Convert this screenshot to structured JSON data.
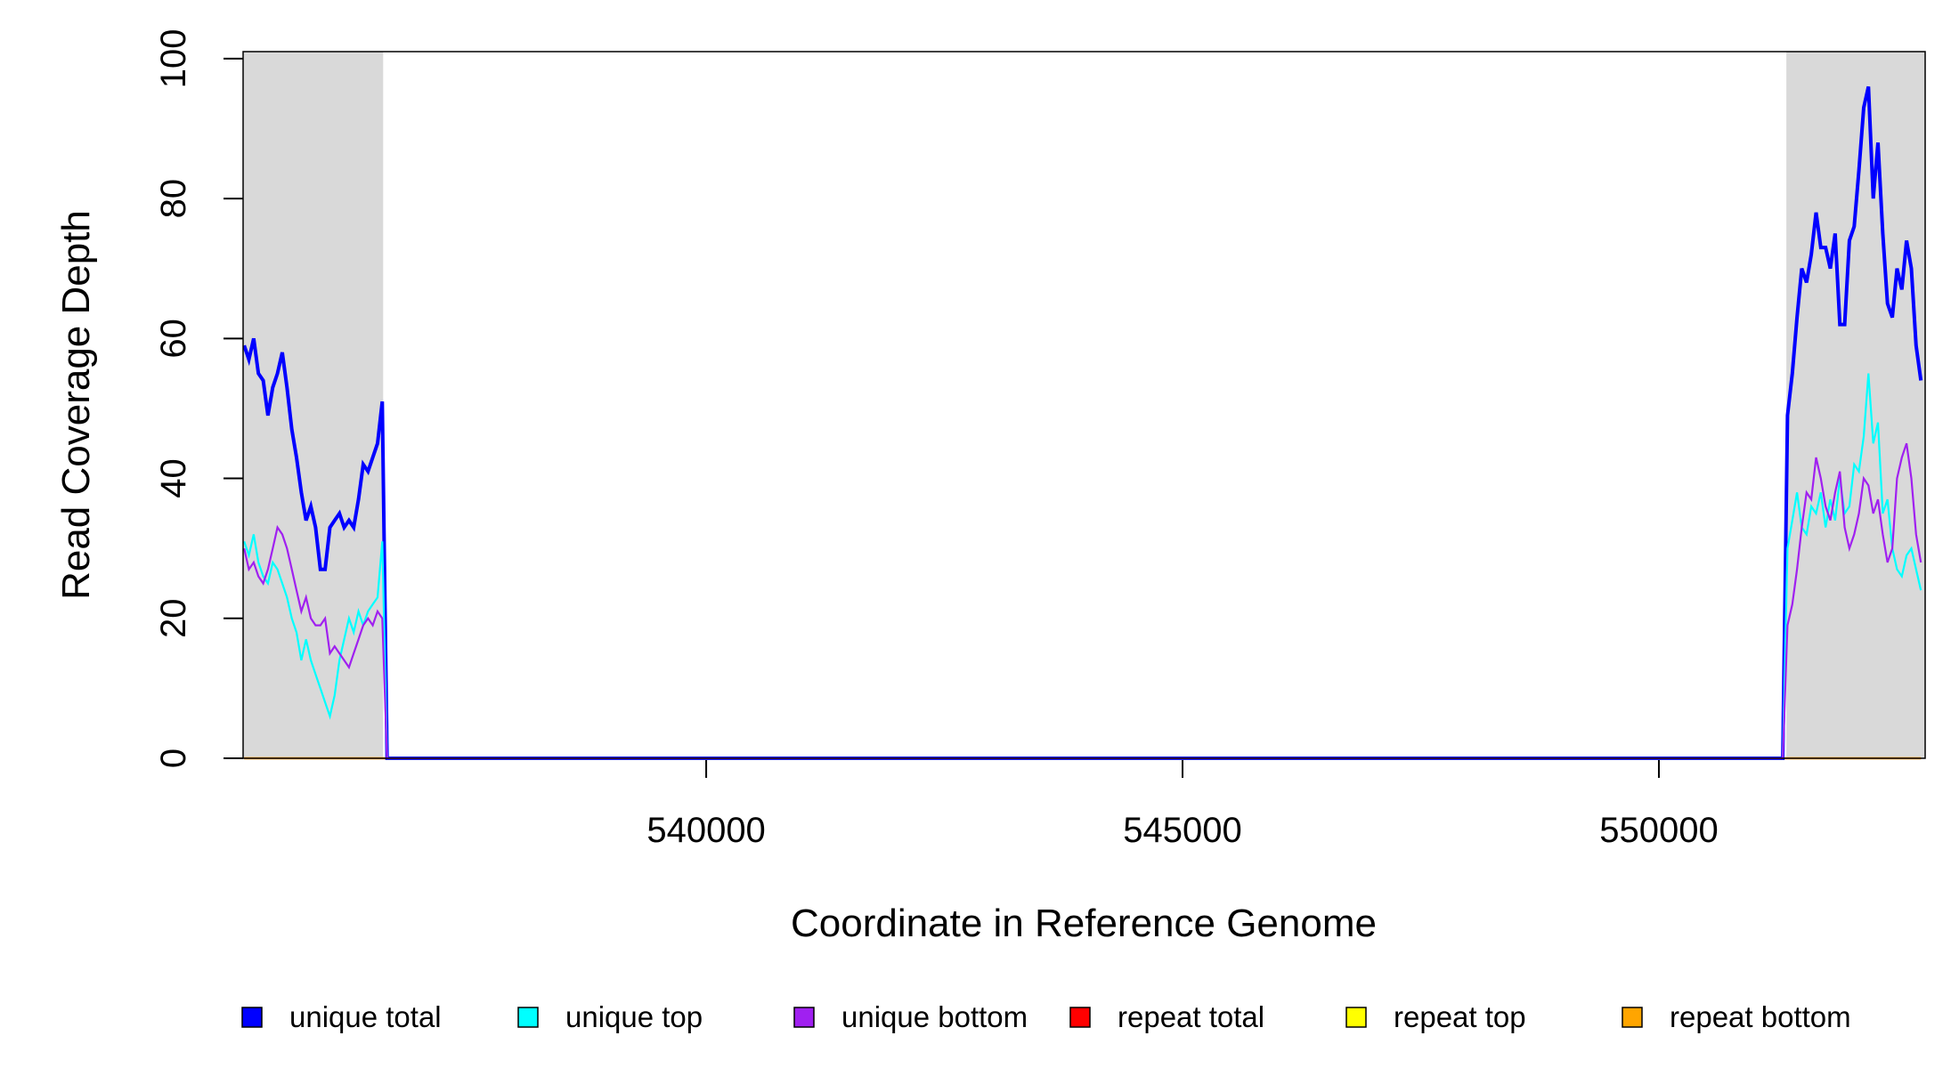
{
  "chart_data": {
    "type": "line",
    "x_label": "Coordinate in Reference Genome",
    "y_label": "Read Coverage Depth",
    "xlim": [
      535139,
      552795
    ],
    "ylim": [
      0,
      101
    ],
    "xticks": [
      540000,
      545000,
      550000
    ],
    "yticks": [
      0,
      20,
      40,
      60,
      80,
      100
    ],
    "shaded_regions": [
      [
        535139,
        536609
      ],
      [
        551338,
        552795
      ]
    ],
    "x": [
      535150,
      535200,
      535250,
      535300,
      535350,
      535400,
      535450,
      535500,
      535550,
      535600,
      535650,
      535700,
      535750,
      535800,
      535850,
      535900,
      535950,
      536000,
      536050,
      536100,
      536150,
      536200,
      536250,
      536300,
      536350,
      536400,
      536450,
      536500,
      536550,
      536600,
      536650,
      551300,
      551350,
      551400,
      551450,
      551500,
      551550,
      551600,
      551650,
      551700,
      551750,
      551800,
      551850,
      551900,
      551950,
      552000,
      552050,
      552100,
      552150,
      552200,
      552250,
      552300,
      552350,
      552400,
      552450,
      552500,
      552550,
      552600,
      552650,
      552700,
      552750
    ],
    "series": [
      {
        "name": "unique total",
        "color": "#0000ff",
        "values": [
          59,
          57,
          60,
          55,
          54,
          49,
          53,
          55,
          58,
          53,
          47,
          43,
          38,
          34,
          36,
          33,
          27,
          27,
          33,
          34,
          35,
          33,
          34,
          33,
          37,
          42,
          41,
          43,
          45,
          51,
          0,
          0,
          49,
          55,
          63,
          70,
          68,
          72,
          78,
          73,
          73,
          70,
          75,
          62,
          62,
          74,
          76,
          84,
          93,
          96,
          80,
          88,
          75,
          65,
          63,
          70,
          67,
          74,
          70,
          59,
          54
        ]
      },
      {
        "name": "unique top",
        "color": "#00ffff",
        "values": [
          31,
          29,
          32,
          28,
          26,
          25,
          28,
          27,
          25,
          23,
          20,
          18,
          14,
          17,
          14,
          12,
          10,
          8,
          6,
          9,
          14,
          17,
          20,
          18,
          21,
          19,
          21,
          22,
          23,
          31,
          0,
          0,
          30,
          34,
          38,
          33,
          32,
          36,
          35,
          38,
          33,
          37,
          34,
          40,
          35,
          36,
          42,
          41,
          46,
          55,
          45,
          48,
          35,
          37,
          30,
          27,
          26,
          29,
          30,
          27,
          24
        ]
      },
      {
        "name": "unique bottom",
        "color": "#a020f0",
        "values": [
          30,
          27,
          28,
          26,
          25,
          27,
          30,
          33,
          32,
          30,
          27,
          24,
          21,
          23,
          20,
          19,
          19,
          20,
          15,
          16,
          15,
          14,
          13,
          15,
          17,
          19,
          20,
          19,
          21,
          20,
          0,
          0,
          19,
          22,
          27,
          33,
          38,
          37,
          43,
          40,
          36,
          34,
          38,
          41,
          33,
          30,
          32,
          35,
          40,
          39,
          35,
          37,
          32,
          28,
          30,
          40,
          43,
          45,
          40,
          32,
          28
        ]
      },
      {
        "name": "repeat total",
        "color": "#ff0000",
        "values": [
          0,
          0,
          0,
          0,
          0,
          0,
          0,
          0,
          0,
          0,
          0,
          0,
          0,
          0,
          0,
          0,
          0,
          0,
          0,
          0,
          0,
          0,
          0,
          0,
          0,
          0,
          0,
          0,
          0,
          0,
          0,
          0,
          0,
          0,
          0,
          0,
          0,
          0,
          0,
          0,
          0,
          0,
          0,
          0,
          0,
          0,
          0,
          0,
          0,
          0,
          0,
          0,
          0,
          0,
          0,
          0,
          0,
          0,
          0,
          0,
          0
        ]
      },
      {
        "name": "repeat top",
        "color": "#ffff00",
        "values": [
          0,
          0,
          0,
          0,
          0,
          0,
          0,
          0,
          0,
          0,
          0,
          0,
          0,
          0,
          0,
          0,
          0,
          0,
          0,
          0,
          0,
          0,
          0,
          0,
          0,
          0,
          0,
          0,
          0,
          0,
          0,
          0,
          0,
          0,
          0,
          0,
          0,
          0,
          0,
          0,
          0,
          0,
          0,
          0,
          0,
          0,
          0,
          0,
          0,
          0,
          0,
          0,
          0,
          0,
          0,
          0,
          0,
          0,
          0,
          0,
          0
        ]
      },
      {
        "name": "repeat bottom",
        "color": "#ffa500",
        "values": [
          0,
          0,
          0,
          0,
          0,
          0,
          0,
          0,
          0,
          0,
          0,
          0,
          0,
          0,
          0,
          0,
          0,
          0,
          0,
          0,
          0,
          0,
          0,
          0,
          0,
          0,
          0,
          0,
          0,
          0,
          0,
          0,
          0,
          0,
          0,
          0,
          0,
          0,
          0,
          0,
          0,
          0,
          0,
          0,
          0,
          0,
          0,
          0,
          0,
          0,
          0,
          0,
          0,
          0,
          0,
          0,
          0,
          0,
          0,
          0,
          0
        ]
      }
    ]
  }
}
